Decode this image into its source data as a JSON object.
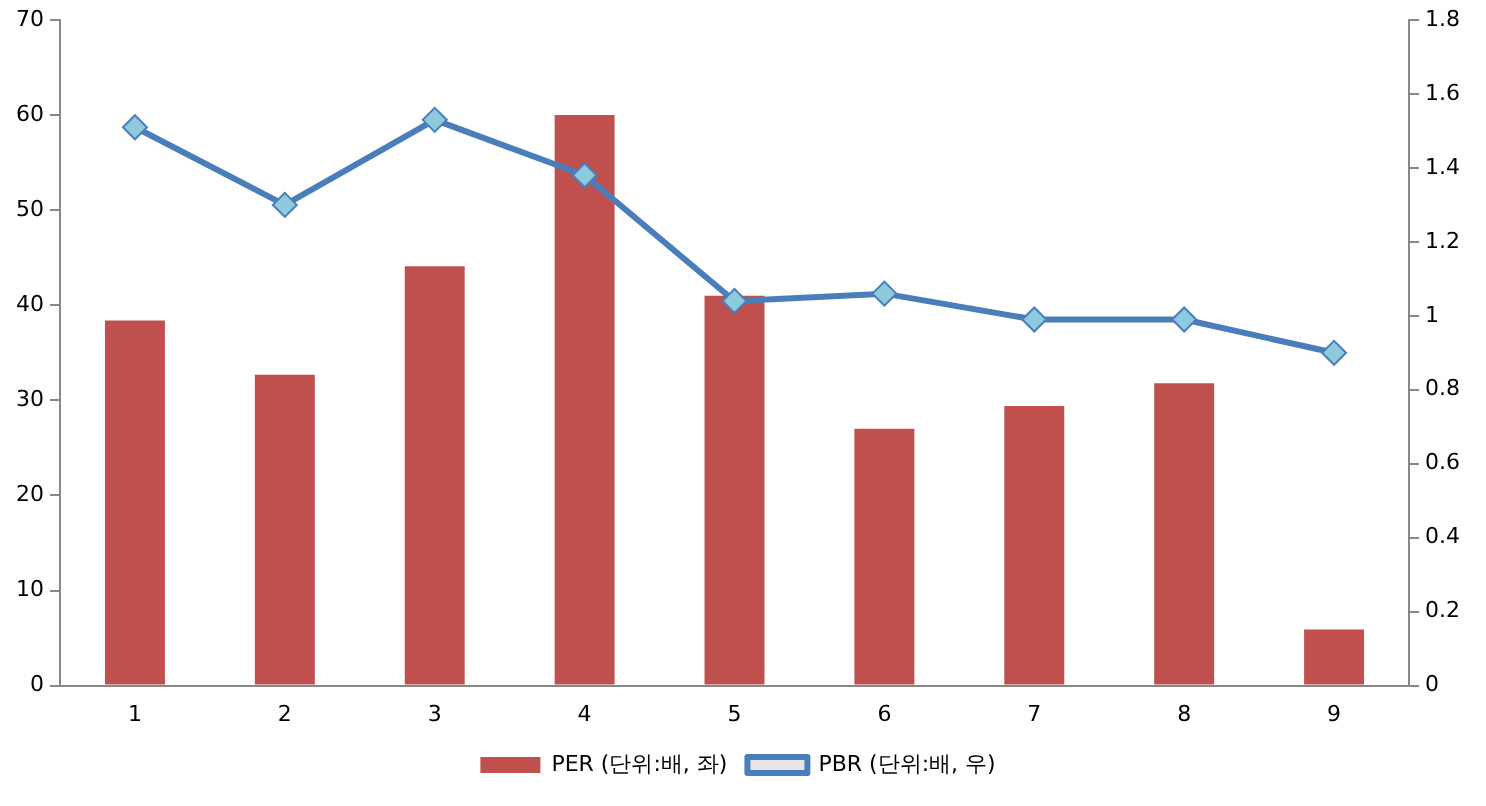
{
  "chart_data": {
    "type": "bar",
    "categories": [
      "1",
      "2",
      "3",
      "4",
      "5",
      "6",
      "7",
      "8",
      "9"
    ],
    "series": [
      {
        "name": "PER (단위:배, 좌)",
        "color": "#c0504d",
        "values": [
          38.4,
          32.7,
          44.1,
          60,
          41.0,
          27.0,
          29.4,
          31.8,
          5.9
        ]
      },
      {
        "name": "PBR (단위:배, 우)",
        "type": "line",
        "axis": "y2",
        "color": "#4a7ebb",
        "marker": "diamond",
        "values": [
          1.51,
          1.3,
          1.53,
          1.38,
          1.04,
          1.06,
          0.99,
          0.99,
          0.9
        ]
      }
    ],
    "ylim": [
      0,
      70
    ],
    "yticks": [
      0,
      10,
      20,
      30,
      40,
      50,
      60,
      70
    ],
    "y2lim": [
      0,
      1.8
    ],
    "y2ticks": [
      0,
      0.2,
      0.4,
      0.6,
      0.8,
      1,
      1.2,
      1.4,
      1.6,
      1.8
    ],
    "grid": false,
    "legend": "bottom"
  }
}
